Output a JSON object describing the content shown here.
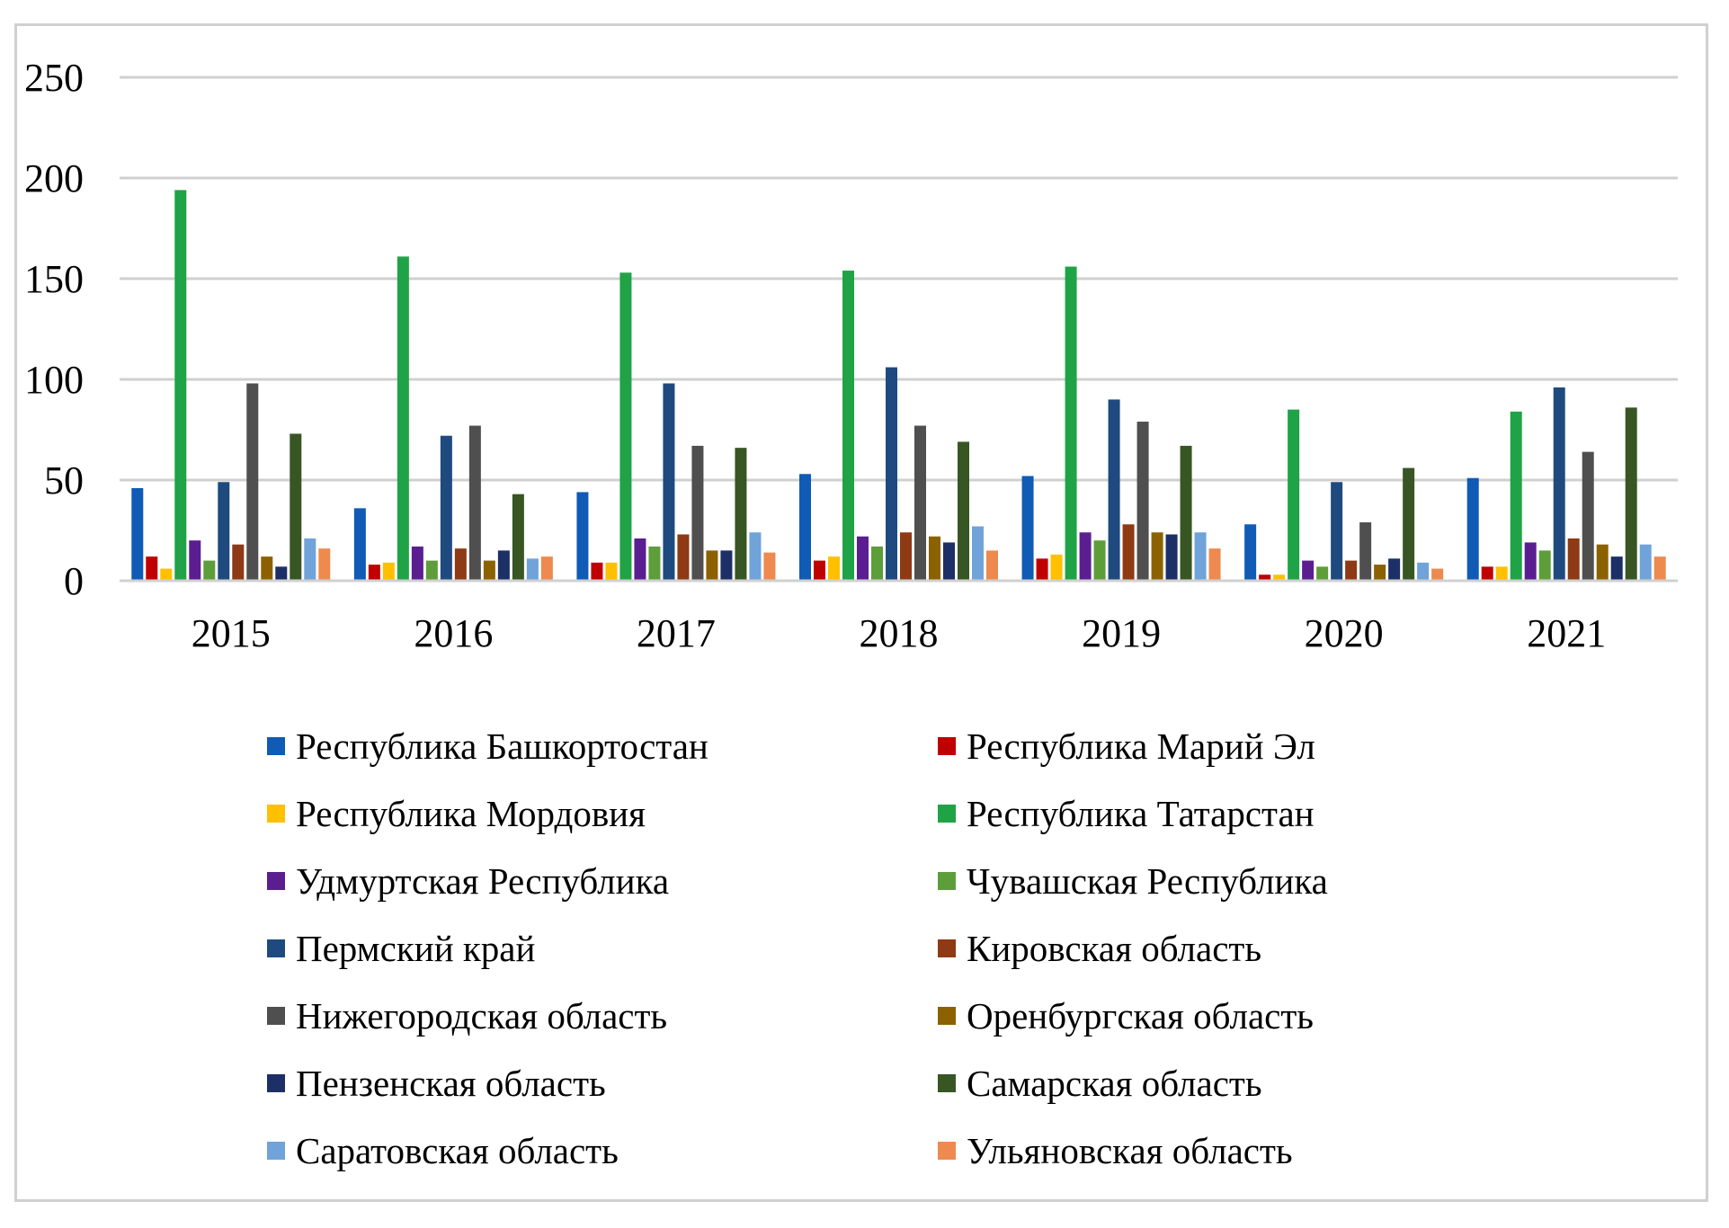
{
  "chart_data": {
    "type": "bar",
    "title": "",
    "xlabel": "",
    "ylabel": "",
    "ylim": [
      0,
      250
    ],
    "yticks": [
      "0",
      "50",
      "100",
      "150",
      "200",
      "250"
    ],
    "grid": true,
    "legend_position": "bottom",
    "categories": [
      "2015",
      "2016",
      "2017",
      "2018",
      "2019",
      "2020",
      "2021"
    ],
    "series": [
      {
        "name": "Республика Башкортостан",
        "color": "#0f5bb5",
        "values": [
          46,
          36,
          44,
          53,
          52,
          28,
          51
        ]
      },
      {
        "name": "Республика Марий Эл",
        "color": "#c00000",
        "values": [
          12,
          8,
          9,
          10,
          11,
          3,
          7
        ]
      },
      {
        "name": "Республика Мордовия",
        "color": "#ffc000",
        "values": [
          6,
          9,
          9,
          12,
          13,
          3,
          7
        ]
      },
      {
        "name": "Республика Татарстан",
        "color": "#1fa346",
        "values": [
          194,
          161,
          153,
          154,
          156,
          85,
          84
        ]
      },
      {
        "name": "Удмуртская Республика",
        "color": "#5a1e91",
        "values": [
          20,
          17,
          21,
          22,
          24,
          10,
          19
        ]
      },
      {
        "name": "Чувашская Республика",
        "color": "#5d9e3a",
        "values": [
          10,
          10,
          17,
          17,
          20,
          7,
          15
        ]
      },
      {
        "name": "Пермский край",
        "color": "#1f4a80",
        "values": [
          49,
          72,
          98,
          106,
          90,
          49,
          96
        ]
      },
      {
        "name": "Кировская область",
        "color": "#8e3a14",
        "values": [
          18,
          16,
          23,
          24,
          28,
          10,
          21
        ]
      },
      {
        "name": "Нижегородская область",
        "color": "#4f4f4f",
        "values": [
          98,
          77,
          67,
          77,
          79,
          29,
          64
        ]
      },
      {
        "name": "Оренбургская область",
        "color": "#8c6100",
        "values": [
          12,
          10,
          15,
          22,
          24,
          8,
          18
        ]
      },
      {
        "name": "Пензенская область",
        "color": "#1c2f66",
        "values": [
          7,
          15,
          15,
          19,
          23,
          11,
          12
        ]
      },
      {
        "name": "Самарская область",
        "color": "#375623",
        "values": [
          73,
          43,
          66,
          69,
          67,
          56,
          86
        ]
      },
      {
        "name": "Саратовская область",
        "color": "#6fa3d9",
        "values": [
          21,
          11,
          24,
          27,
          24,
          9,
          18
        ]
      },
      {
        "name": "Ульяновская область",
        "color": "#ee8a4f",
        "values": [
          16,
          12,
          14,
          15,
          16,
          6,
          12
        ]
      }
    ]
  }
}
